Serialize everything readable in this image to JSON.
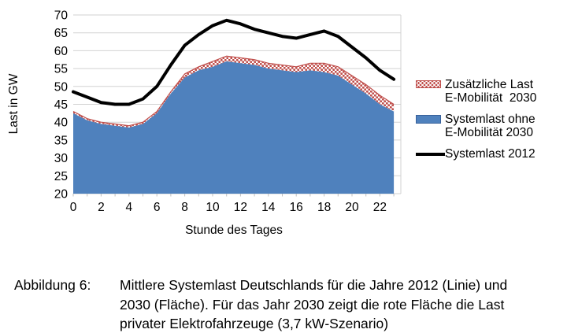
{
  "figure": {
    "caption_label": "Abbildung 6:",
    "caption_lines": [
      "Mittlere Systemlast Deutschlands für die Jahre 2012 (Linie) und",
      "2030 (Fläche). Für das Jahr 2030 zeigt die rote Fläche die Last",
      "privater Elektrofahrzeuge (3,7 kW-Szenario)"
    ]
  },
  "legend": {
    "items": [
      {
        "swatch": "red-dot-hatch",
        "color": "#c0504d",
        "label_lines": [
          "Zusätzliche Last",
          "E-Mobilität  2030"
        ]
      },
      {
        "swatch": "blue-fill",
        "color": "#4f81bd",
        "label_lines": [
          "Systemlast ohne",
          "E-Mobilität 2030"
        ]
      },
      {
        "swatch": "black-line",
        "color": "#000000",
        "label_lines": [
          "Systemlast 2012"
        ]
      }
    ]
  },
  "chart_data": {
    "type": "area",
    "title": "",
    "xlabel": "Stunde des Tages",
    "ylabel": "Last in GW",
    "ylim": [
      20,
      70
    ],
    "ytick_step": 5,
    "xticks": [
      0,
      2,
      4,
      6,
      8,
      10,
      12,
      14,
      16,
      18,
      20,
      22
    ],
    "grid": "horizontal",
    "legend_position": "right",
    "x": [
      0,
      1,
      2,
      3,
      4,
      5,
      6,
      7,
      8,
      9,
      10,
      11,
      12,
      13,
      14,
      15,
      16,
      17,
      18,
      19,
      20,
      21,
      22,
      23
    ],
    "series": [
      {
        "name": "Systemlast ohne E-Mobilität 2030",
        "type": "area",
        "stack": "2030",
        "color": "#4f81bd",
        "values": [
          42.5,
          40.5,
          39.5,
          39,
          38.5,
          39.5,
          42.5,
          48,
          52.5,
          54.5,
          55.5,
          57,
          56.5,
          56,
          55,
          54.5,
          54,
          54.5,
          54,
          53,
          50.5,
          48,
          45,
          43
        ]
      },
      {
        "name": "Zusätzliche Last E-Mobilität 2030",
        "type": "area",
        "stack": "2030",
        "style": "red-dot-hatch",
        "color": "#c0504d",
        "values": [
          0.5,
          0.5,
          0.5,
          0.5,
          0.5,
          0.5,
          0.5,
          0.5,
          1,
          1,
          1.5,
          1.5,
          1.5,
          1.5,
          1.5,
          1.5,
          1.5,
          2,
          2.5,
          2.5,
          2.5,
          2.5,
          2.5,
          2
        ]
      },
      {
        "name": "Systemlast 2012",
        "type": "line",
        "color": "#000000",
        "stroke_width": 4,
        "values": [
          48.5,
          47,
          45.5,
          45,
          45,
          46.5,
          50,
          56,
          61.5,
          64.5,
          67,
          68.5,
          67.5,
          66,
          65,
          64,
          63.5,
          64.5,
          65.5,
          64,
          61,
          58,
          54.5,
          52
        ]
      }
    ]
  }
}
